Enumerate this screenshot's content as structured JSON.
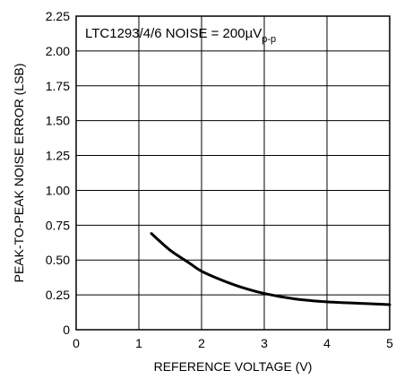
{
  "chart_data": {
    "type": "line",
    "title": "",
    "xlabel": "REFERENCE VOLTAGE (V)",
    "ylabel": "PEAK-TO-PEAK NOISE ERROR (LSB)",
    "xlim": [
      0,
      5
    ],
    "ylim": [
      0,
      2.25
    ],
    "xticks": [
      0,
      1,
      2,
      3,
      4,
      5
    ],
    "yticks": [
      0,
      0.25,
      0.5,
      0.75,
      1.0,
      1.25,
      1.5,
      1.75,
      2.0,
      2.25
    ],
    "ytick_labels": [
      "0",
      "0.25",
      "0.50",
      "0.75",
      "1.00",
      "1.25",
      "1.50",
      "1.75",
      "2.00",
      "2.25"
    ],
    "grid": true,
    "annotation": {
      "text": "LTC1293/4/6 NOISE = 200µV",
      "subscript": "p-p"
    },
    "series": [
      {
        "x": [
          1.2,
          1.5,
          1.8,
          2.0,
          2.3,
          2.6,
          3.0,
          3.5,
          4.0,
          4.5,
          5.0
        ],
        "y": [
          0.69,
          0.57,
          0.48,
          0.42,
          0.36,
          0.31,
          0.26,
          0.22,
          0.2,
          0.19,
          0.18
        ]
      }
    ]
  }
}
